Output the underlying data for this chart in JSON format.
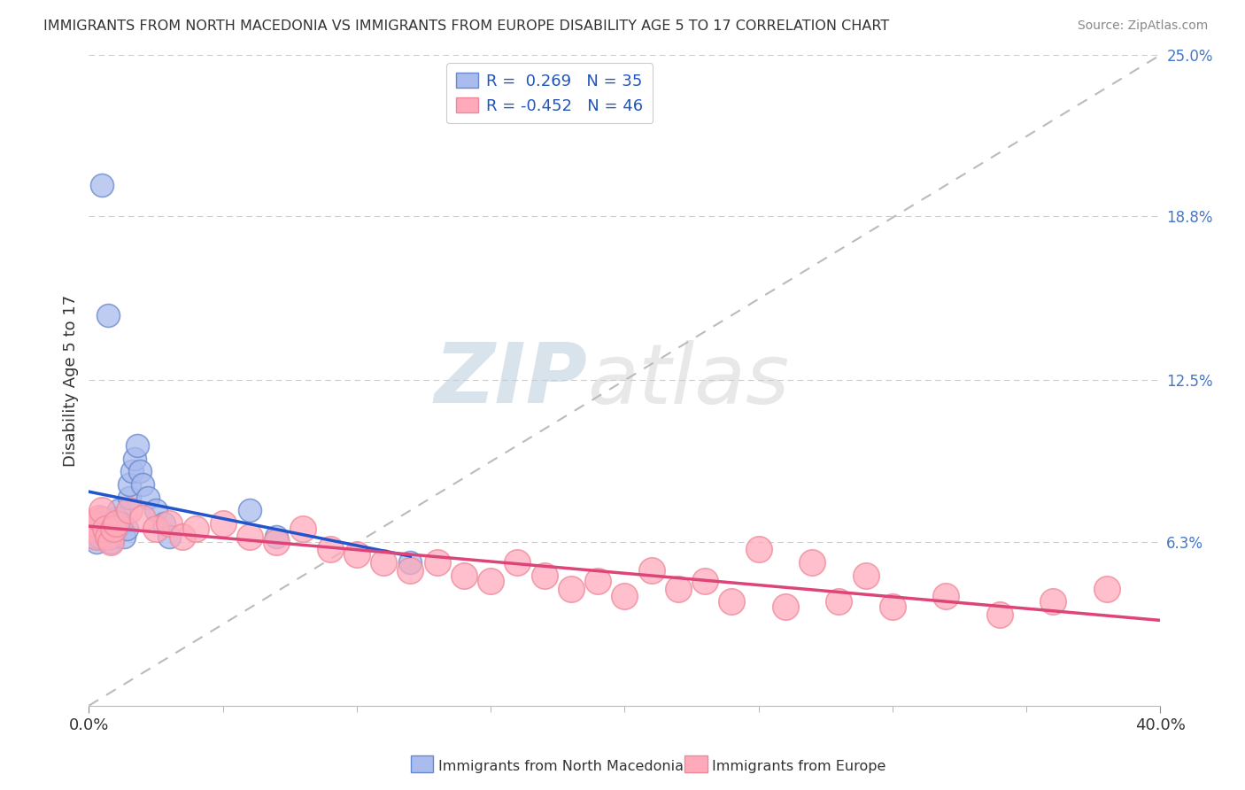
{
  "title": "IMMIGRANTS FROM NORTH MACEDONIA VS IMMIGRANTS FROM EUROPE DISABILITY AGE 5 TO 17 CORRELATION CHART",
  "source": "Source: ZipAtlas.com",
  "ylabel": "Disability Age 5 to 17",
  "x_min": 0.0,
  "x_max": 0.4,
  "y_min": 0.0,
  "y_max": 0.25,
  "x_tick_labels": [
    "0.0%",
    "40.0%"
  ],
  "y_tick_labels_right": [
    "6.3%",
    "12.5%",
    "18.8%",
    "25.0%"
  ],
  "y_tick_values_right": [
    0.063,
    0.125,
    0.188,
    0.25
  ],
  "r_blue": 0.269,
  "n_blue": 35,
  "r_pink": -0.452,
  "n_pink": 46,
  "blue_fill": "#AABBEE",
  "blue_edge": "#6688CC",
  "pink_fill": "#FFAABB",
  "pink_edge": "#EE8899",
  "blue_line_color": "#2255CC",
  "pink_line_color": "#DD4477",
  "legend_label_blue": "Immigrants from North Macedonia",
  "legend_label_pink": "Immigrants from Europe",
  "watermark_zip": "ZIP",
  "watermark_atlas": "atlas",
  "grid_color": "#CCCCCC",
  "background_color": "#FFFFFF",
  "blue_scatter_x": [
    0.001,
    0.002,
    0.003,
    0.003,
    0.004,
    0.005,
    0.005,
    0.006,
    0.007,
    0.008,
    0.008,
    0.009,
    0.009,
    0.01,
    0.01,
    0.011,
    0.012,
    0.013,
    0.014,
    0.015,
    0.015,
    0.016,
    0.017,
    0.018,
    0.019,
    0.02,
    0.022,
    0.025,
    0.028,
    0.03,
    0.005,
    0.007,
    0.06,
    0.07,
    0.12
  ],
  "blue_scatter_y": [
    0.065,
    0.068,
    0.07,
    0.063,
    0.065,
    0.072,
    0.07,
    0.068,
    0.066,
    0.065,
    0.063,
    0.07,
    0.065,
    0.068,
    0.072,
    0.075,
    0.07,
    0.065,
    0.068,
    0.08,
    0.085,
    0.09,
    0.095,
    0.1,
    0.09,
    0.085,
    0.08,
    0.075,
    0.07,
    0.065,
    0.2,
    0.15,
    0.075,
    0.065,
    0.055
  ],
  "pink_scatter_x": [
    0.001,
    0.002,
    0.003,
    0.004,
    0.005,
    0.006,
    0.007,
    0.008,
    0.009,
    0.01,
    0.015,
    0.02,
    0.025,
    0.03,
    0.035,
    0.04,
    0.05,
    0.06,
    0.07,
    0.08,
    0.09,
    0.1,
    0.11,
    0.12,
    0.13,
    0.14,
    0.15,
    0.16,
    0.17,
    0.18,
    0.19,
    0.2,
    0.22,
    0.24,
    0.26,
    0.28,
    0.3,
    0.32,
    0.34,
    0.36,
    0.25,
    0.27,
    0.29,
    0.21,
    0.23,
    0.38
  ],
  "pink_scatter_y": [
    0.068,
    0.07,
    0.065,
    0.072,
    0.075,
    0.068,
    0.065,
    0.063,
    0.068,
    0.07,
    0.075,
    0.072,
    0.068,
    0.07,
    0.065,
    0.068,
    0.07,
    0.065,
    0.063,
    0.068,
    0.06,
    0.058,
    0.055,
    0.052,
    0.055,
    0.05,
    0.048,
    0.055,
    0.05,
    0.045,
    0.048,
    0.042,
    0.045,
    0.04,
    0.038,
    0.04,
    0.038,
    0.042,
    0.035,
    0.04,
    0.06,
    0.055,
    0.05,
    0.052,
    0.048,
    0.045
  ]
}
